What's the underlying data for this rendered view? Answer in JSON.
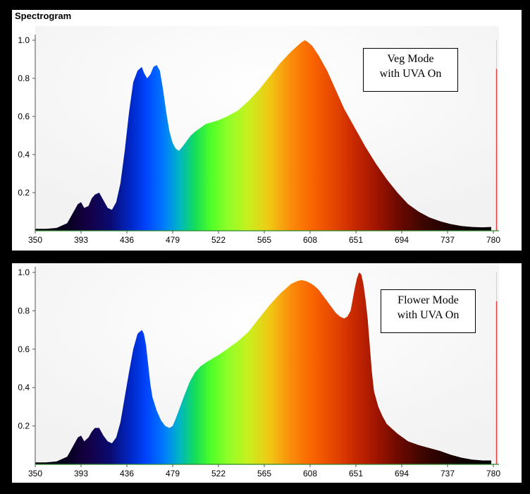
{
  "panels": [
    {
      "title": "Spectrogram",
      "annotation": [
        "Veg Mode",
        "with UVA On"
      ]
    },
    {
      "title": "",
      "annotation": [
        "Flower Mode",
        "with UVA On"
      ]
    }
  ],
  "chart_data": [
    {
      "type": "area",
      "title": "Spectrogram",
      "xlabel": "",
      "ylabel": "",
      "xlim": [
        350,
        780
      ],
      "ylim": [
        0,
        1.0
      ],
      "x_ticks": [
        350,
        393,
        436,
        479,
        522,
        565,
        608,
        651,
        694,
        737,
        780
      ],
      "y_ticks": [
        0.2,
        0.4,
        0.6,
        0.8,
        1.0
      ],
      "marker_line_x": 783,
      "marker_line_y": 0.85,
      "marker_color": "#e04040",
      "series": [
        {
          "x": [
            350,
            360,
            370,
            380,
            385,
            390,
            393,
            396,
            400,
            403,
            406,
            410,
            414,
            418,
            422,
            426,
            430,
            434,
            438,
            442,
            446,
            450,
            452,
            455,
            458,
            461,
            464,
            467,
            470,
            473,
            476,
            479,
            482,
            485,
            488,
            492,
            496,
            500,
            505,
            510,
            516,
            522,
            530,
            540,
            550,
            560,
            570,
            580,
            590,
            596,
            600,
            603,
            606,
            610,
            616,
            624,
            632,
            640,
            650,
            660,
            670,
            680,
            690,
            700,
            710,
            720,
            730,
            740,
            750,
            760,
            770,
            778
          ],
          "y": [
            0.01,
            0.01,
            0.015,
            0.04,
            0.09,
            0.14,
            0.15,
            0.12,
            0.13,
            0.17,
            0.19,
            0.2,
            0.16,
            0.12,
            0.11,
            0.15,
            0.25,
            0.42,
            0.62,
            0.78,
            0.84,
            0.86,
            0.83,
            0.8,
            0.82,
            0.86,
            0.87,
            0.84,
            0.74,
            0.62,
            0.52,
            0.46,
            0.43,
            0.42,
            0.44,
            0.47,
            0.5,
            0.52,
            0.54,
            0.56,
            0.57,
            0.58,
            0.6,
            0.63,
            0.68,
            0.74,
            0.81,
            0.88,
            0.94,
            0.97,
            0.99,
            1.0,
            0.99,
            0.97,
            0.92,
            0.84,
            0.74,
            0.64,
            0.54,
            0.44,
            0.35,
            0.27,
            0.2,
            0.14,
            0.1,
            0.07,
            0.05,
            0.035,
            0.025,
            0.02,
            0.018,
            0.02
          ]
        }
      ]
    },
    {
      "type": "area",
      "title": "",
      "xlabel": "",
      "ylabel": "",
      "xlim": [
        350,
        780
      ],
      "ylim": [
        0,
        1.0
      ],
      "x_ticks": [
        350,
        393,
        436,
        479,
        522,
        565,
        608,
        651,
        694,
        737,
        780
      ],
      "y_ticks": [
        0.2,
        0.4,
        0.6,
        0.8,
        1.0
      ],
      "marker_line_x": 783,
      "marker_line_y": 0.85,
      "marker_color": "#e04040",
      "series": [
        {
          "x": [
            350,
            360,
            370,
            380,
            385,
            390,
            393,
            396,
            400,
            403,
            406,
            410,
            414,
            418,
            422,
            426,
            430,
            434,
            438,
            442,
            446,
            450,
            452,
            454,
            456,
            458,
            460,
            464,
            468,
            472,
            476,
            479,
            482,
            486,
            490,
            495,
            500,
            505,
            510,
            516,
            522,
            530,
            540,
            550,
            560,
            570,
            580,
            590,
            596,
            600,
            604,
            608,
            612,
            616,
            620,
            624,
            628,
            632,
            636,
            640,
            643,
            646,
            648,
            650,
            652,
            654,
            656,
            658,
            660,
            662,
            664,
            666,
            668,
            672,
            676,
            680,
            690,
            700,
            710,
            720,
            730,
            740,
            750,
            760,
            770,
            778
          ],
          "y": [
            0.01,
            0.01,
            0.015,
            0.04,
            0.09,
            0.14,
            0.15,
            0.12,
            0.14,
            0.17,
            0.19,
            0.19,
            0.15,
            0.12,
            0.11,
            0.14,
            0.22,
            0.35,
            0.48,
            0.6,
            0.68,
            0.7,
            0.68,
            0.62,
            0.52,
            0.42,
            0.35,
            0.28,
            0.23,
            0.2,
            0.19,
            0.2,
            0.24,
            0.3,
            0.36,
            0.43,
            0.48,
            0.51,
            0.53,
            0.55,
            0.57,
            0.6,
            0.64,
            0.69,
            0.76,
            0.83,
            0.89,
            0.94,
            0.955,
            0.96,
            0.955,
            0.945,
            0.93,
            0.91,
            0.88,
            0.85,
            0.82,
            0.79,
            0.77,
            0.76,
            0.77,
            0.8,
            0.86,
            0.92,
            0.97,
            1.0,
            0.99,
            0.94,
            0.86,
            0.76,
            0.62,
            0.48,
            0.38,
            0.3,
            0.25,
            0.21,
            0.16,
            0.12,
            0.1,
            0.085,
            0.07,
            0.05,
            0.035,
            0.025,
            0.02,
            0.02
          ]
        }
      ]
    }
  ]
}
